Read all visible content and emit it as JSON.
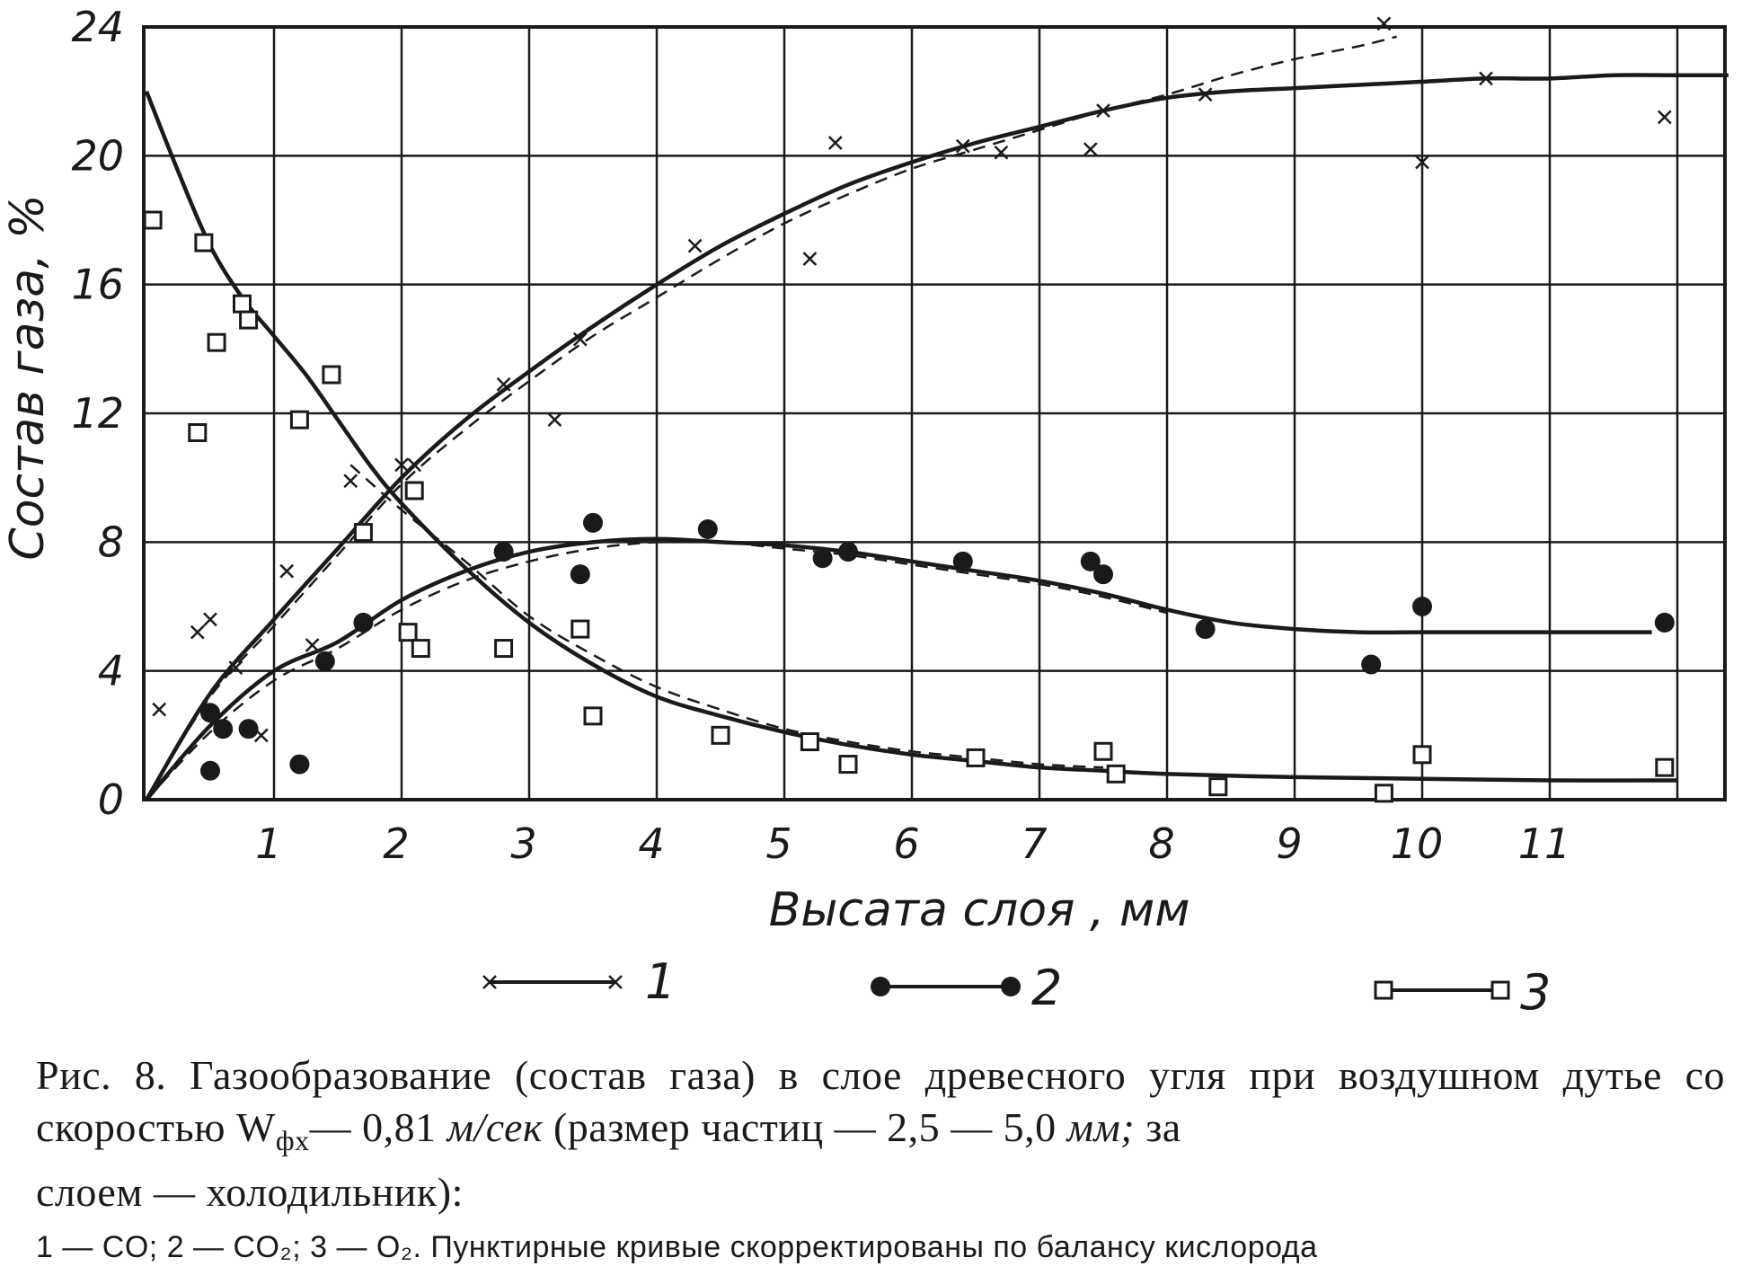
{
  "chart_data": {
    "type": "line",
    "xlabel": "Высата слоя , мм",
    "ylabel": "Состав газа, %",
    "xlim": [
      0,
      12.5
    ],
    "ylim": [
      0,
      24
    ],
    "xticks": [
      "1",
      "2",
      "3",
      "4",
      "5",
      "6",
      "7",
      "8",
      "9",
      "10",
      "11"
    ],
    "yticks": [
      "0",
      "4",
      "8",
      "12",
      "16",
      "20",
      "24"
    ],
    "grid": true,
    "legend": {
      "placement": "bottom",
      "entries": [
        "1",
        "2",
        "3"
      ]
    },
    "series": [
      {
        "key": "1",
        "name": "1",
        "marker": "x",
        "points": [
          [
            0.1,
            2.8
          ],
          [
            0.4,
            5.2
          ],
          [
            0.5,
            5.6
          ],
          [
            0.7,
            4.1
          ],
          [
            0.9,
            2.0
          ],
          [
            1.1,
            7.1
          ],
          [
            1.3,
            4.8
          ],
          [
            1.6,
            9.9
          ],
          [
            2.0,
            10.4
          ],
          [
            2.1,
            10.4
          ],
          [
            2.8,
            12.9
          ],
          [
            3.2,
            11.8
          ],
          [
            3.4,
            14.3
          ],
          [
            4.3,
            17.2
          ],
          [
            5.2,
            16.8
          ],
          [
            5.4,
            20.4
          ],
          [
            6.4,
            20.3
          ],
          [
            6.7,
            20.1
          ],
          [
            7.4,
            20.2
          ],
          [
            7.5,
            21.4
          ],
          [
            8.3,
            21.9
          ],
          [
            9.7,
            24.1
          ],
          [
            10.0,
            19.8
          ],
          [
            10.5,
            22.4
          ],
          [
            11.9,
            21.2
          ]
        ],
        "solid": [
          [
            0,
            0
          ],
          [
            0.5,
            3.3
          ],
          [
            1,
            5.6
          ],
          [
            1.5,
            7.8
          ],
          [
            2,
            10
          ],
          [
            2.5,
            11.8
          ],
          [
            3,
            13.3
          ],
          [
            3.5,
            14.7
          ],
          [
            4,
            16
          ],
          [
            4.5,
            17.2
          ],
          [
            5,
            18.2
          ],
          [
            5.5,
            19.1
          ],
          [
            6,
            19.8
          ],
          [
            6.5,
            20.4
          ],
          [
            7,
            20.9
          ],
          [
            7.5,
            21.4
          ],
          [
            8,
            21.8
          ],
          [
            8.5,
            22
          ],
          [
            9,
            22.1
          ],
          [
            9.5,
            22.2
          ],
          [
            10,
            22.3
          ],
          [
            10.5,
            22.4
          ],
          [
            11,
            22.4
          ],
          [
            11.5,
            22.5
          ],
          [
            12,
            22.5
          ],
          [
            12.4,
            22.5
          ]
        ],
        "dashed": [
          [
            0,
            0
          ],
          [
            0.5,
            3.2
          ],
          [
            1,
            5.4
          ],
          [
            1.5,
            7.6
          ],
          [
            2,
            9.8
          ],
          [
            2.5,
            11.5
          ],
          [
            3,
            13
          ],
          [
            3.5,
            14.4
          ],
          [
            4,
            15.6
          ],
          [
            4.5,
            16.8
          ],
          [
            5,
            17.9
          ],
          [
            5.5,
            18.8
          ],
          [
            6,
            19.6
          ],
          [
            6.5,
            20.2
          ],
          [
            7,
            20.8
          ],
          [
            7.5,
            21.4
          ],
          [
            8,
            21.9
          ],
          [
            8.5,
            22.5
          ],
          [
            9,
            23
          ],
          [
            9.5,
            23.4
          ],
          [
            9.8,
            23.7
          ]
        ]
      },
      {
        "key": "2",
        "name": "2",
        "marker": "filled-circle",
        "points": [
          [
            0.5,
            2.7
          ],
          [
            0.6,
            2.2
          ],
          [
            0.5,
            0.9
          ],
          [
            0.8,
            2.2
          ],
          [
            1.2,
            1.1
          ],
          [
            1.4,
            4.3
          ],
          [
            1.7,
            5.5
          ],
          [
            2.8,
            7.7
          ],
          [
            3.4,
            7.0
          ],
          [
            3.5,
            8.6
          ],
          [
            4.4,
            8.4
          ],
          [
            5.3,
            7.5
          ],
          [
            5.5,
            7.7
          ],
          [
            6.4,
            7.4
          ],
          [
            7.4,
            7.4
          ],
          [
            7.5,
            7.0
          ],
          [
            8.3,
            5.3
          ],
          [
            9.6,
            4.2
          ],
          [
            10.0,
            6.0
          ],
          [
            11.9,
            5.5
          ]
        ],
        "solid": [
          [
            0,
            0
          ],
          [
            0.5,
            2.3
          ],
          [
            1,
            4
          ],
          [
            1.5,
            4.9
          ],
          [
            2,
            6.2
          ],
          [
            2.5,
            7.1
          ],
          [
            3,
            7.7
          ],
          [
            3.5,
            8
          ],
          [
            4,
            8.1
          ],
          [
            4.5,
            8
          ],
          [
            5,
            7.9
          ],
          [
            5.5,
            7.7
          ],
          [
            6,
            7.4
          ],
          [
            6.5,
            7.1
          ],
          [
            7,
            6.8
          ],
          [
            7.5,
            6.4
          ],
          [
            8,
            5.9
          ],
          [
            8.5,
            5.5
          ],
          [
            9,
            5.3
          ],
          [
            9.5,
            5.2
          ],
          [
            10,
            5.2
          ],
          [
            11,
            5.2
          ],
          [
            11.8,
            5.2
          ]
        ],
        "dashed": [
          [
            0,
            0
          ],
          [
            0.5,
            2.1
          ],
          [
            1,
            3.7
          ],
          [
            1.5,
            4.7
          ],
          [
            2,
            5.9
          ],
          [
            2.5,
            6.8
          ],
          [
            3,
            7.4
          ],
          [
            3.5,
            7.8
          ],
          [
            4,
            8
          ],
          [
            4.5,
            8
          ],
          [
            5,
            7.8
          ],
          [
            5.5,
            7.6
          ],
          [
            6,
            7.3
          ],
          [
            6.5,
            7
          ],
          [
            7,
            6.7
          ],
          [
            7.5,
            6.3
          ],
          [
            8,
            5.8
          ]
        ]
      },
      {
        "key": "3",
        "name": "3",
        "marker": "open-square",
        "points": [
          [
            0.05,
            18.0
          ],
          [
            0.45,
            17.3
          ],
          [
            0.55,
            14.2
          ],
          [
            0.4,
            11.4
          ],
          [
            0.75,
            15.4
          ],
          [
            0.8,
            14.9
          ],
          [
            1.2,
            11.8
          ],
          [
            1.45,
            13.2
          ],
          [
            1.7,
            8.3
          ],
          [
            2.05,
            5.2
          ],
          [
            2.1,
            9.6
          ],
          [
            2.15,
            4.7
          ],
          [
            2.8,
            4.7
          ],
          [
            3.4,
            5.3
          ],
          [
            3.5,
            2.6
          ],
          [
            4.5,
            2.0
          ],
          [
            5.2,
            1.8
          ],
          [
            5.5,
            1.1
          ],
          [
            6.5,
            1.3
          ],
          [
            7.5,
            1.5
          ],
          [
            7.6,
            0.8
          ],
          [
            8.4,
            0.4
          ],
          [
            9.7,
            0.2
          ],
          [
            10.0,
            1.4
          ],
          [
            11.9,
            1.0
          ]
        ],
        "solid": [
          [
            0,
            22
          ],
          [
            0.25,
            19.5
          ],
          [
            0.5,
            17.2
          ],
          [
            0.75,
            15.6
          ],
          [
            1,
            14.4
          ],
          [
            1.25,
            13.2
          ],
          [
            1.5,
            11.8
          ],
          [
            1.75,
            10.4
          ],
          [
            2,
            9.2
          ],
          [
            2.5,
            7.2
          ],
          [
            3,
            5.5
          ],
          [
            3.5,
            4.2
          ],
          [
            4,
            3.2
          ],
          [
            4.5,
            2.6
          ],
          [
            5,
            2.1
          ],
          [
            5.5,
            1.7
          ],
          [
            6,
            1.4
          ],
          [
            6.5,
            1.2
          ],
          [
            7,
            1.0
          ],
          [
            7.5,
            0.9
          ],
          [
            8,
            0.8
          ],
          [
            9,
            0.7
          ],
          [
            10,
            0.65
          ],
          [
            11,
            0.6
          ],
          [
            12,
            0.6
          ]
        ],
        "dashed": [
          [
            1.6,
            10.4
          ],
          [
            2,
            9
          ],
          [
            2.5,
            7.4
          ],
          [
            3,
            5.7
          ],
          [
            3.5,
            4.5
          ],
          [
            4,
            3.5
          ],
          [
            4.5,
            2.8
          ],
          [
            5,
            2.2
          ],
          [
            5.5,
            1.8
          ],
          [
            6,
            1.5
          ],
          [
            6.5,
            1.3
          ],
          [
            7,
            1.1
          ],
          [
            7.5,
            1.0
          ]
        ]
      }
    ]
  },
  "caption": {
    "line1": "Рис. 8. Газообразование (состав газа) в слое древесного угля при воздушном дутье со скоростью  W",
    "wsub": "фх",
    "line1b": "— 0,81",
    "unit1": "м/сек",
    "line1c": "(размер частиц — 2,5 — 5,0",
    "unit2": "мм;",
    "line1d": "за",
    "line2": "слоем — холодильник):",
    "line3": "1 — CO; 2 — CO₂; 3 — O₂. Пунктирные кривые скорректированы по балансу кислорода"
  }
}
